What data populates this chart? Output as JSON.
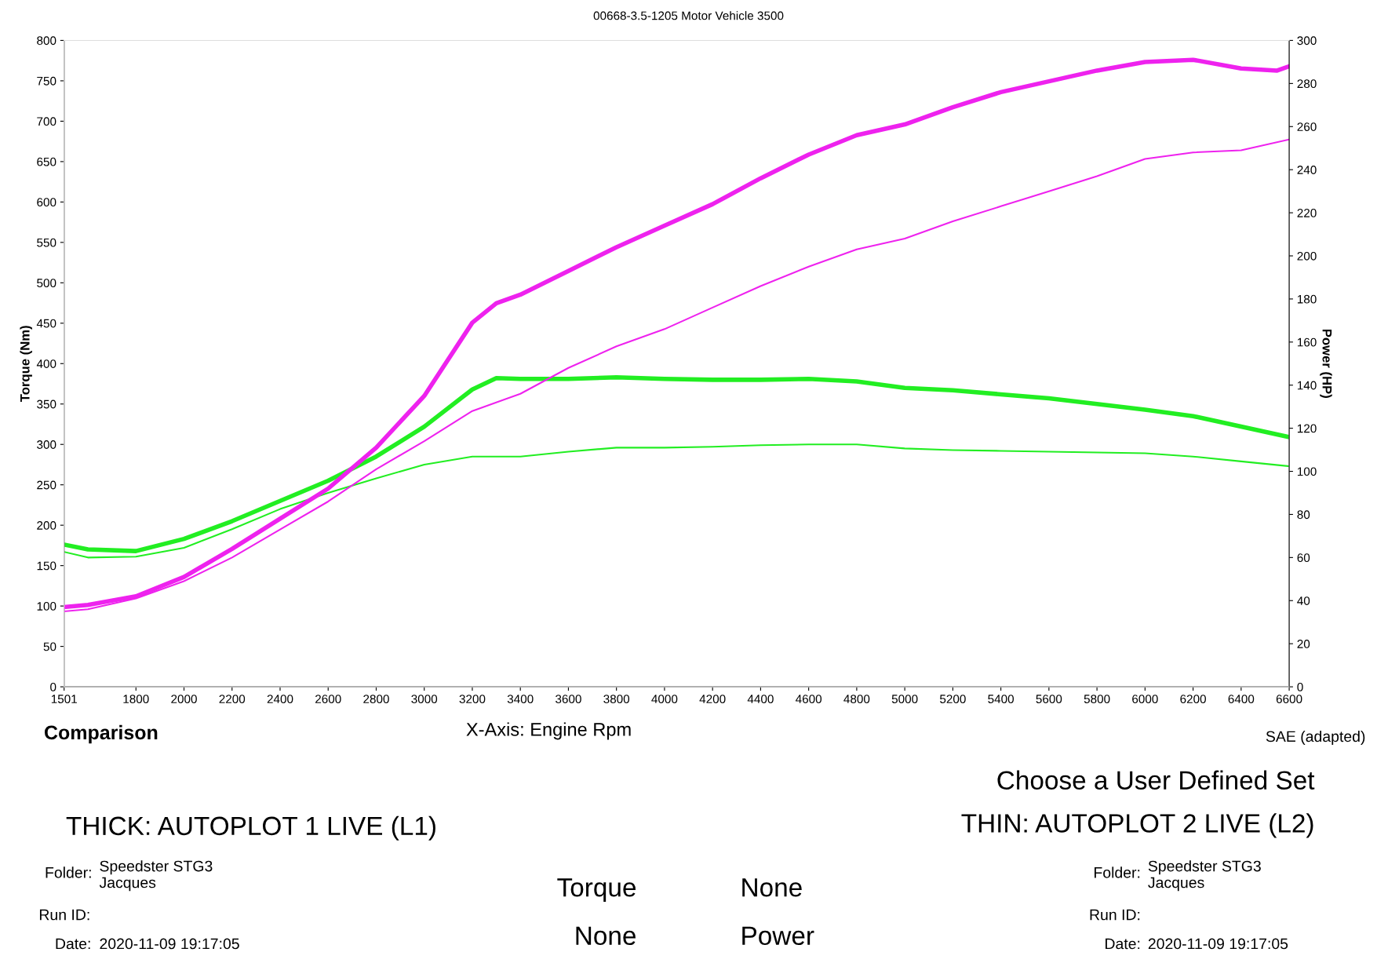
{
  "chart_data": {
    "type": "line",
    "title": "00668-3.5-1205 Motor Vehicle 3500",
    "xlabel": "X-Axis: Engine Rpm",
    "ylabel": "Torque (Nm)",
    "y2label": "Power (HP)",
    "x": [
      1501,
      1600,
      1800,
      2000,
      2200,
      2400,
      2600,
      2800,
      3000,
      3200,
      3300,
      3400,
      3600,
      3800,
      4000,
      4200,
      4400,
      4600,
      4800,
      5000,
      5200,
      5400,
      5600,
      5800,
      6000,
      6200,
      6400,
      6600
    ],
    "series": [
      {
        "color": "#22ee22",
        "values": [
          176,
          170,
          168,
          183,
          205,
          230,
          255,
          285,
          322,
          368,
          382,
          381,
          381,
          383,
          381,
          380,
          380,
          381,
          378,
          370,
          367,
          362,
          357,
          350,
          343,
          335,
          322,
          309
        ]
      },
      {
        "color": "#22ee22",
        "values": [
          167,
          160,
          161,
          172,
          195,
          220,
          240,
          258,
          275,
          285,
          285,
          285,
          291,
          296,
          296,
          297,
          299,
          300,
          300,
          295,
          293,
          292,
          291,
          290,
          289,
          285,
          279,
          273
        ]
      },
      {
        "color": "#ee22ee",
        "axis": "y2",
        "x": [
          1501,
          1600,
          1800,
          2000,
          2200,
          2400,
          2600,
          2800,
          3000,
          3200,
          3300,
          3400,
          3600,
          3800,
          4000,
          4200,
          4400,
          4600,
          4800,
          5000,
          5200,
          5400,
          5600,
          5800,
          6000,
          6200,
          6400,
          6550,
          6600
        ],
        "values": [
          37,
          38,
          42,
          51,
          64,
          78,
          92,
          111,
          135,
          169,
          178,
          182,
          193,
          204,
          214,
          224,
          236,
          247,
          256,
          261,
          269,
          276,
          281,
          286,
          290,
          291,
          287,
          286,
          288
        ]
      },
      {
        "color": "#ee22ee",
        "axis": "y2",
        "x": [
          1501,
          1600,
          1800,
          2000,
          2200,
          2400,
          2600,
          2800,
          3000,
          3200,
          3400,
          3600,
          3800,
          4000,
          4200,
          4400,
          4600,
          4800,
          5000,
          5200,
          5400,
          5600,
          5800,
          6000,
          6200,
          6400,
          6600
        ],
        "values": [
          35,
          36,
          41,
          49,
          60,
          73,
          86,
          101,
          114,
          128,
          136,
          148,
          158,
          166,
          176,
          186,
          195,
          203,
          208,
          216,
          223,
          230,
          237,
          245,
          248,
          249,
          254
        ]
      }
    ],
    "xlim": [
      1501,
      6600
    ],
    "xticks": [
      1501,
      1800,
      2000,
      2200,
      2400,
      2600,
      2800,
      3000,
      3200,
      3400,
      3600,
      3800,
      4000,
      4200,
      4400,
      4600,
      4800,
      5000,
      5200,
      5400,
      5600,
      5800,
      6000,
      6200,
      6400,
      6600
    ],
    "ylim": [
      0,
      800
    ],
    "yticks": [
      0,
      50,
      100,
      150,
      200,
      250,
      300,
      350,
      400,
      450,
      500,
      550,
      600,
      650,
      700,
      750,
      800
    ],
    "y2lim": [
      0,
      300
    ],
    "y2ticks": [
      0,
      20,
      40,
      60,
      80,
      100,
      120,
      140,
      160,
      180,
      200,
      220,
      240,
      260,
      280,
      300
    ],
    "grid": false,
    "legend": false,
    "marker": "none",
    "line_style": "solid",
    "annotations": [
      "Comparison",
      "SAE (adapted)",
      "Choose a User Defined Set",
      "THICK: AUTOPLOT 1 LIVE (L1)",
      "THIN: AUTOPLOT 2 LIVE (L2)",
      "Folder:",
      "Speedster STG3\nJacques",
      "Run ID:",
      "Date:",
      "2020-11-09 19:17:05",
      "Torque",
      "None",
      "None",
      "Power",
      "Folder:",
      "Speedster STG3\nJacques",
      "Run ID:",
      "Date:",
      "2020-11-09 19:17:05"
    ]
  }
}
